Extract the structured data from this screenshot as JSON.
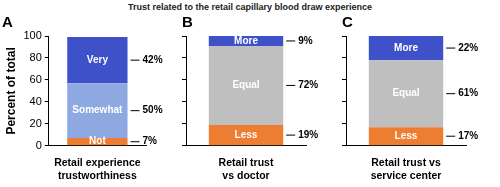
{
  "title": "Trust related to the retail capillary blood draw experience",
  "chart_data": [
    {
      "type": "bar",
      "title": "A",
      "y_label": "Percent of total",
      "stacked": true,
      "grid": false,
      "data_labels": true,
      "categories": [
        "Retail experience trustworthiness"
      ],
      "ylim": [
        0,
        100
      ],
      "yticks": [
        0,
        20,
        40,
        60,
        80,
        100
      ],
      "series": [
        {
          "name": "Not",
          "color": "#ec7d31",
          "values": [
            7
          ],
          "value_labels": [
            "7%"
          ]
        },
        {
          "name": "Somewhat",
          "color": "#8ea9e2",
          "values": [
            50
          ],
          "value_labels": [
            "50%"
          ]
        },
        {
          "name": "Very",
          "color": "#3f51c8",
          "values": [
            42
          ],
          "value_labels": [
            "42%"
          ]
        }
      ]
    },
    {
      "type": "bar",
      "title": "B",
      "stacked": true,
      "grid": false,
      "data_labels": true,
      "tick_labels": "x",
      "categories": [
        "Retail trust vs doctor"
      ],
      "ylim": [
        0,
        100
      ],
      "yticks": [
        0,
        20,
        40,
        60,
        80,
        100
      ],
      "series": [
        {
          "name": "Less",
          "color": "#ec7d31",
          "values": [
            19
          ],
          "value_labels": [
            "19%"
          ]
        },
        {
          "name": "Equal",
          "color": "#bfbfbf",
          "values": [
            72
          ],
          "value_labels": [
            "72%"
          ]
        },
        {
          "name": "More",
          "color": "#3f51c8",
          "values": [
            9
          ],
          "value_labels": [
            "9%"
          ]
        }
      ]
    },
    {
      "type": "bar",
      "title": "C",
      "stacked": true,
      "grid": false,
      "data_labels": true,
      "tick_labels": "x",
      "categories": [
        "Retail trust vs service center"
      ],
      "ylim": [
        0,
        100
      ],
      "yticks": [
        0,
        20,
        40,
        60,
        80,
        100
      ],
      "series": [
        {
          "name": "Less",
          "color": "#ec7d31",
          "values": [
            17
          ],
          "value_labels": [
            "17%"
          ]
        },
        {
          "name": "Equal",
          "color": "#bfbfbf",
          "values": [
            61
          ],
          "value_labels": [
            "61%"
          ]
        },
        {
          "name": "More",
          "color": "#3f51c8",
          "values": [
            22
          ],
          "value_labels": [
            "22%"
          ]
        }
      ]
    }
  ]
}
